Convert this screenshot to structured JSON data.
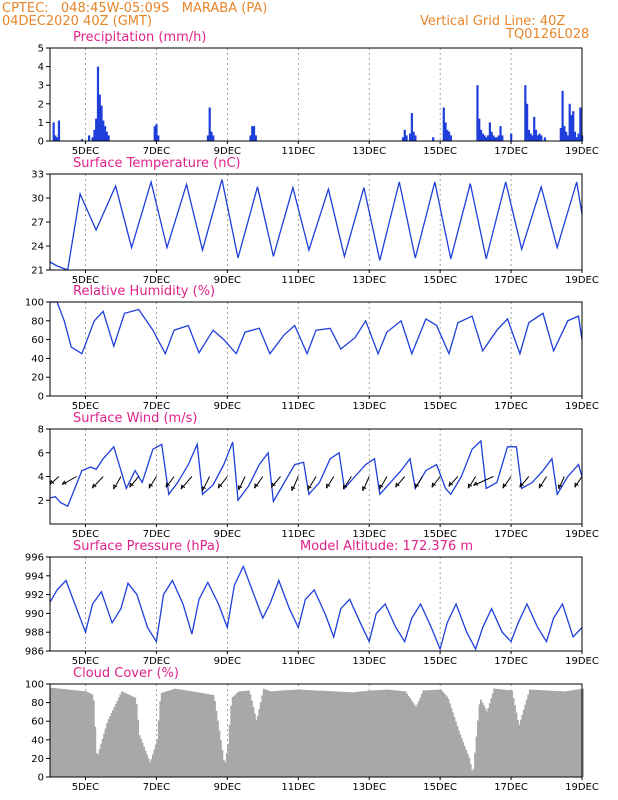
{
  "header": {
    "line1_left": "CPTEC:   048:45W-05:09S   MARABA (PA)",
    "line2_left": "04DEC2020 40Z (GMT)",
    "line1_right": "Vertical Grid Line: 40Z",
    "line2_right": "TQ0126L028"
  },
  "colors": {
    "header": "#e8862a",
    "panel_title": "#e0218a",
    "series": "#1f3fdb",
    "cloud": "#a8a8a8",
    "arrow": "#000000"
  },
  "x_axis": {
    "day_labels": [
      "5DEC",
      "7DEC",
      "9DEC",
      "11DEC",
      "13DEC",
      "15DEC",
      "17DEC",
      "19DEC"
    ],
    "day_label_positions": [
      5,
      7,
      9,
      11,
      13,
      15,
      17,
      19
    ],
    "start_day": 4.0,
    "end_day": 19.0
  },
  "chart_data": [
    {
      "type": "bar",
      "title": "Precipitation (mm/h)",
      "ylim": [
        0,
        5
      ],
      "yticks": [
        0,
        1,
        2,
        3,
        4,
        5
      ],
      "grid": "vertical dashed",
      "x": [
        4.1,
        4.15,
        4.2,
        4.25,
        4.9,
        5.1,
        5.2,
        5.25,
        5.3,
        5.35,
        5.4,
        5.45,
        5.5,
        5.55,
        5.6,
        5.65,
        6.95,
        7.0,
        7.05,
        8.45,
        8.5,
        8.55,
        8.6,
        9.65,
        9.7,
        9.75,
        9.8,
        13.95,
        14.0,
        14.05,
        14.15,
        14.2,
        14.25,
        14.3,
        14.8,
        15.1,
        15.15,
        15.2,
        15.25,
        15.3,
        16.05,
        16.1,
        16.15,
        16.2,
        16.25,
        16.3,
        16.35,
        16.4,
        16.45,
        16.5,
        16.55,
        16.6,
        16.65,
        16.7,
        16.75,
        17.0,
        17.4,
        17.45,
        17.5,
        17.55,
        17.6,
        17.65,
        17.7,
        17.75,
        17.8,
        17.85,
        17.95,
        18.4,
        18.45,
        18.5,
        18.55,
        18.6,
        18.65,
        18.7,
        18.75,
        18.8,
        18.85,
        18.9,
        18.95,
        19.0
      ],
      "values": [
        1.0,
        0.3,
        0.2,
        1.1,
        0.1,
        0.3,
        0.2,
        0.6,
        1.2,
        4.0,
        2.5,
        1.9,
        1.1,
        0.8,
        0.5,
        0.3,
        0.8,
        0.9,
        0.3,
        0.3,
        1.8,
        0.5,
        0.3,
        0.3,
        0.8,
        0.8,
        0.3,
        0.2,
        0.6,
        0.3,
        0.4,
        1.5,
        0.5,
        0.3,
        0.2,
        1.8,
        1.0,
        0.6,
        0.5,
        0.3,
        3.0,
        1.2,
        0.6,
        0.4,
        0.3,
        0.2,
        0.3,
        1.0,
        0.5,
        0.3,
        0.2,
        0.2,
        0.3,
        0.8,
        0.3,
        0.4,
        3.0,
        2.0,
        0.6,
        0.4,
        0.3,
        1.3,
        0.6,
        0.3,
        0.4,
        0.3,
        0.2,
        0.7,
        2.7,
        0.8,
        0.5,
        0.3,
        2.0,
        1.4,
        1.6,
        0.5,
        0.2,
        0.4,
        1.8,
        0.3
      ]
    },
    {
      "type": "line",
      "title": "Surface Temperature (nC)",
      "ylim": [
        21,
        33
      ],
      "yticks": [
        21,
        24,
        27,
        30,
        33
      ],
      "grid": "vertical dashed",
      "x": [
        4.0,
        4.2,
        4.5,
        4.85,
        5.3,
        5.85,
        6.3,
        6.85,
        7.3,
        7.85,
        8.3,
        8.85,
        9.3,
        9.85,
        10.3,
        10.85,
        11.3,
        11.85,
        12.3,
        12.85,
        13.3,
        13.85,
        14.3,
        14.85,
        15.3,
        15.85,
        16.3,
        16.85,
        17.3,
        17.85,
        18.3,
        18.85,
        19.0
      ],
      "values": [
        22.0,
        21.5,
        21.0,
        30.5,
        26.0,
        31.5,
        23.8,
        32.0,
        23.8,
        31.7,
        23.5,
        32.3,
        22.5,
        31.4,
        22.7,
        31.3,
        23.5,
        31.1,
        22.7,
        31.3,
        22.2,
        32.0,
        22.5,
        32.0,
        22.4,
        31.8,
        22.4,
        32.0,
        23.6,
        31.4,
        23.8,
        32.0,
        28.0
      ]
    },
    {
      "type": "line",
      "title": "Relative Humidity (%)",
      "ylim": [
        0,
        100
      ],
      "yticks": [
        0,
        20,
        40,
        60,
        80,
        100
      ],
      "grid": "vertical dashed",
      "x": [
        4.0,
        4.2,
        4.4,
        4.6,
        4.9,
        5.25,
        5.5,
        5.8,
        6.1,
        6.5,
        6.9,
        7.25,
        7.5,
        7.9,
        8.2,
        8.6,
        8.9,
        9.25,
        9.5,
        9.9,
        10.2,
        10.6,
        10.9,
        11.25,
        11.5,
        11.9,
        12.2,
        12.6,
        12.9,
        13.25,
        13.5,
        13.9,
        14.2,
        14.6,
        14.9,
        15.25,
        15.5,
        15.9,
        16.2,
        16.6,
        16.9,
        17.25,
        17.5,
        17.9,
        18.2,
        18.6,
        18.9,
        19.0
      ],
      "values": [
        100,
        100,
        80,
        52,
        45,
        80,
        90,
        53,
        88,
        92,
        70,
        45,
        70,
        75,
        46,
        70,
        60,
        45,
        68,
        72,
        45,
        65,
        75,
        45,
        70,
        72,
        50,
        62,
        80,
        45,
        68,
        80,
        45,
        82,
        75,
        45,
        78,
        85,
        48,
        70,
        82,
        45,
        78,
        88,
        48,
        80,
        85,
        60
      ]
    },
    {
      "type": "line",
      "title": "Surface Wind (m/s)",
      "ylim": [
        0,
        8
      ],
      "yticks": [
        2,
        4,
        6,
        8
      ],
      "grid": "vertical dashed",
      "x": [
        4.0,
        4.15,
        4.3,
        4.5,
        4.9,
        5.15,
        5.3,
        5.5,
        5.8,
        6.15,
        6.4,
        6.6,
        6.9,
        7.15,
        7.35,
        7.6,
        7.9,
        8.15,
        8.3,
        8.6,
        8.9,
        9.15,
        9.3,
        9.6,
        9.9,
        10.15,
        10.3,
        10.55,
        10.9,
        11.15,
        11.3,
        11.6,
        11.9,
        12.15,
        12.3,
        12.6,
        12.9,
        13.15,
        13.3,
        13.6,
        13.9,
        14.15,
        14.3,
        14.6,
        14.9,
        15.15,
        15.3,
        15.6,
        15.9,
        16.15,
        16.3,
        16.6,
        16.9,
        17.15,
        17.3,
        17.6,
        17.9,
        18.15,
        18.3,
        18.6,
        18.9,
        19.0
      ],
      "values": [
        2.2,
        2.3,
        1.8,
        1.5,
        4.5,
        4.8,
        4.6,
        5.5,
        6.5,
        3.0,
        4.5,
        3.5,
        6.3,
        6.7,
        2.5,
        3.5,
        5.0,
        6.7,
        2.5,
        3.3,
        5.0,
        6.9,
        2.0,
        3.2,
        5.0,
        6.0,
        1.9,
        3.2,
        5.0,
        5.2,
        2.5,
        3.5,
        5.5,
        6.0,
        3.0,
        4.0,
        5.0,
        5.5,
        2.5,
        3.5,
        4.5,
        5.5,
        3.0,
        4.5,
        5.0,
        3.0,
        2.5,
        4.0,
        6.3,
        7.0,
        3.0,
        3.5,
        6.5,
        6.5,
        3.0,
        3.5,
        4.5,
        5.5,
        2.5,
        4.0,
        5.0,
        4.0
      ],
      "wind_vectors": {
        "x": [
          4.25,
          4.75,
          5.5,
          6.0,
          6.5,
          7.0,
          7.5,
          8.0,
          8.5,
          9.0,
          9.5,
          10.0,
          10.5,
          11.0,
          11.5,
          12.0,
          12.5,
          13.0,
          13.5,
          14.0,
          14.5,
          15.0,
          15.5,
          16.0,
          16.5,
          17.0,
          17.5,
          18.0,
          18.5,
          19.0
        ],
        "u": [
          -1.0,
          -1.6,
          -1.2,
          -0.8,
          -1.0,
          -0.8,
          -0.9,
          -1.2,
          -0.8,
          -1.0,
          -0.7,
          -0.9,
          -1.0,
          -0.7,
          -0.9,
          -0.8,
          -0.9,
          -0.7,
          -0.8,
          -1.0,
          -0.8,
          -0.9,
          -1.0,
          -0.8,
          -2.2,
          -0.9,
          -1.0,
          -0.8,
          -0.6,
          -0.8
        ],
        "v": [
          -0.9,
          -0.9,
          -1.3,
          -1.4,
          -1.2,
          -1.3,
          -1.2,
          -1.4,
          -1.6,
          -1.3,
          -1.5,
          -1.3,
          -1.2,
          -1.6,
          -1.5,
          -1.3,
          -1.4,
          -1.6,
          -1.4,
          -1.2,
          -1.3,
          -1.2,
          -1.1,
          -1.3,
          -1.0,
          -1.3,
          -1.2,
          -1.3,
          -1.4,
          -1.2
        ]
      }
    },
    {
      "type": "line",
      "title": "Surface Pressure (hPa)",
      "annotation": "Model Altitude: 172.376 m",
      "ylim": [
        986,
        996
      ],
      "yticks": [
        986,
        988,
        990,
        992,
        994,
        996
      ],
      "grid": "vertical dashed",
      "x": [
        4.0,
        4.2,
        4.45,
        4.75,
        5.0,
        5.2,
        5.45,
        5.75,
        6.0,
        6.2,
        6.45,
        6.75,
        7.0,
        7.2,
        7.45,
        7.75,
        8.0,
        8.2,
        8.45,
        8.75,
        9.0,
        9.2,
        9.45,
        9.75,
        10.0,
        10.2,
        10.45,
        10.75,
        11.0,
        11.2,
        11.45,
        11.75,
        12.0,
        12.2,
        12.45,
        12.75,
        13.0,
        13.2,
        13.45,
        13.75,
        14.0,
        14.2,
        14.45,
        14.75,
        15.0,
        15.2,
        15.45,
        15.75,
        16.0,
        16.2,
        16.45,
        16.75,
        17.0,
        17.2,
        17.45,
        17.75,
        18.0,
        18.2,
        18.45,
        18.75,
        19.0
      ],
      "values": [
        991.2,
        992.5,
        993.5,
        990.5,
        988.0,
        991.0,
        992.3,
        989.0,
        990.5,
        993.2,
        992.0,
        988.5,
        987.0,
        992.0,
        993.5,
        991.0,
        987.8,
        991.5,
        993.3,
        991.0,
        988.5,
        993.0,
        995.0,
        992.0,
        989.5,
        991.0,
        993.5,
        990.5,
        988.5,
        991.5,
        992.5,
        990.0,
        987.5,
        990.5,
        991.5,
        989.0,
        987.0,
        990.0,
        991.0,
        988.5,
        987.0,
        989.5,
        991.0,
        988.5,
        986.2,
        989.0,
        991.0,
        988.0,
        986.2,
        988.5,
        990.5,
        988.0,
        987.0,
        989.0,
        991.0,
        988.5,
        987.0,
        989.5,
        991.0,
        987.5,
        988.5
      ]
    },
    {
      "type": "area",
      "title": "Cloud Cover (%)",
      "ylim": [
        0,
        100
      ],
      "yticks": [
        0,
        20,
        40,
        60,
        80,
        100
      ],
      "grid": "vertical dashed",
      "x": [
        4.0,
        4.5,
        5.0,
        5.2,
        5.3,
        5.6,
        6.0,
        6.4,
        6.5,
        6.8,
        7.0,
        7.1,
        7.5,
        8.0,
        8.6,
        8.9,
        9.0,
        9.1,
        9.3,
        9.6,
        9.8,
        10.0,
        10.2,
        10.5,
        11.0,
        11.5,
        12.0,
        12.5,
        13.0,
        13.5,
        14.0,
        14.3,
        14.5,
        15.0,
        15.2,
        15.5,
        15.8,
        15.9,
        16.1,
        16.3,
        16.5,
        17.0,
        17.2,
        17.5,
        18.0,
        18.5,
        19.0
      ],
      "values": [
        96,
        94,
        92,
        88,
        20,
        60,
        92,
        85,
        45,
        15,
        40,
        90,
        95,
        92,
        88,
        12,
        35,
        85,
        92,
        93,
        60,
        95,
        92,
        93,
        94,
        93,
        92,
        91,
        93,
        94,
        92,
        75,
        93,
        94,
        85,
        50,
        20,
        2,
        85,
        70,
        95,
        93,
        55,
        94,
        93,
        92,
        95
      ]
    }
  ]
}
